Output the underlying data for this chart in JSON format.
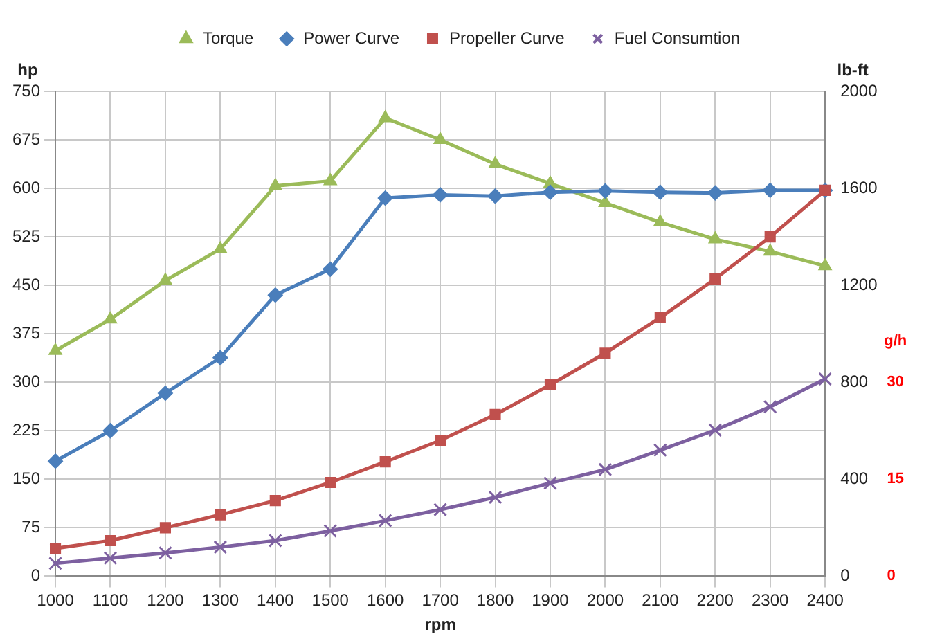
{
  "chart_data": {
    "type": "line",
    "xlabel": "rpm",
    "ylabel": "hp",
    "y2label": "lb-ft",
    "y3label": "g/h",
    "categories": [
      "1000",
      "1100",
      "1200",
      "1300",
      "1400",
      "1500",
      "1600",
      "1700",
      "1800",
      "1900",
      "2000",
      "2100",
      "2200",
      "2300",
      "2400"
    ],
    "series": [
      {
        "name": "Torque",
        "color": "#9bbb59",
        "marker": "triangle",
        "axis": "y2",
        "values": [
          930,
          1060,
          1220,
          1350,
          1610,
          1630,
          1890,
          1800,
          1700,
          1620,
          1540,
          1460,
          1390,
          1340,
          1280
        ]
      },
      {
        "name": "Power Curve",
        "color": "#4a7ebb",
        "marker": "diamond",
        "values": [
          178,
          225,
          283,
          338,
          435,
          475,
          585,
          590,
          588,
          594,
          596,
          594,
          593,
          597,
          597
        ]
      },
      {
        "name": "Propeller Curve",
        "color": "#c0504d",
        "marker": "square",
        "values": [
          43,
          55,
          75,
          95,
          117,
          145,
          177,
          210,
          250,
          296,
          345,
          400,
          460,
          525,
          597
        ]
      },
      {
        "name": "Fuel Consumtion",
        "color": "#7d60a0",
        "marker": "cross",
        "axis": "y3",
        "values": [
          2.0,
          2.8,
          3.6,
          4.5,
          5.5,
          7.0,
          8.6,
          10.3,
          12.2,
          14.4,
          16.5,
          19.5,
          22.6,
          26.2,
          30.5
        ]
      }
    ],
    "ylim": [
      0,
      750
    ],
    "yticks": [
      0,
      75,
      150,
      225,
      300,
      375,
      450,
      525,
      600,
      675,
      750
    ],
    "y2lim": [
      0,
      2000
    ],
    "y2ticks": [
      0,
      400,
      800,
      1200,
      1600,
      2000
    ],
    "y3lim": [
      0,
      75
    ],
    "y3ticks": [
      0,
      15,
      30
    ],
    "grid": true,
    "legend": "top",
    "line_style": "solid"
  }
}
